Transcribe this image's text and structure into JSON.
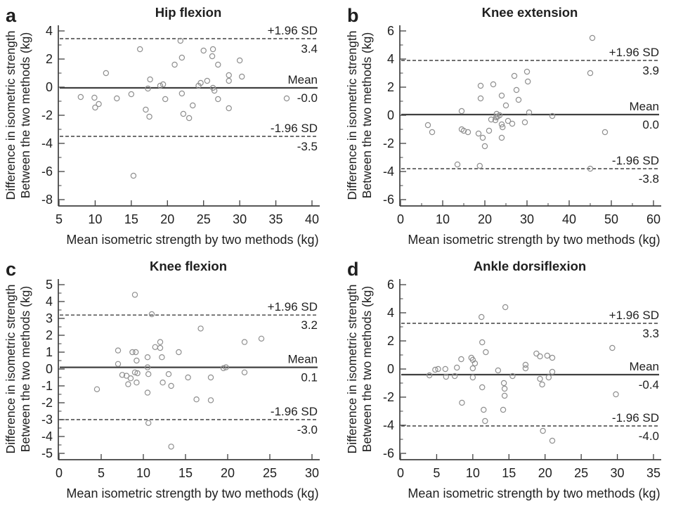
{
  "figure": {
    "background": "#ffffff",
    "text_color": "#1f1f1f",
    "axis_color": "#404040",
    "point_color": "#8f8f8f",
    "xlabel": "Mean isometric strength by two methods (kg)",
    "ylabel_line1": "Difference in isometric strength",
    "ylabel_line2": "Between the two methods (kg)"
  },
  "chart_data": [
    {
      "type": "scatter",
      "letter": "a",
      "title": "Hip flexion",
      "xlabel": "Mean isometric strength by two methods (kg)",
      "ylabel": [
        "Difference in isometric strength",
        "Between the two methods (kg)"
      ],
      "xlim": [
        5,
        40
      ],
      "ylim": [
        -8,
        4
      ],
      "xticks": [
        5,
        10,
        15,
        20,
        25,
        30,
        35,
        40
      ],
      "yticks": [
        4,
        2,
        0,
        -2,
        -4,
        -6,
        -8
      ],
      "x_minor_ticks": [],
      "y_minor_ticks": [
        3,
        1,
        -1,
        -3,
        -5,
        -7
      ],
      "grid": false,
      "reference_lines": [
        {
          "kind": "upper_loa",
          "label": "+1.96 SD",
          "value_label": "3.4",
          "y": 3.45,
          "style": "dashed"
        },
        {
          "kind": "mean",
          "label": "Mean",
          "value_label": "-0.0",
          "y": -0.05,
          "style": "solid"
        },
        {
          "kind": "lower_loa",
          "label": "-1.96 SD",
          "value_label": "-3.5",
          "y": -3.5,
          "style": "dashed"
        }
      ],
      "points": [
        [
          8,
          -0.7
        ],
        [
          9.9,
          -0.75
        ],
        [
          10,
          -1.45
        ],
        [
          10.5,
          -1.2
        ],
        [
          11.5,
          1.0
        ],
        [
          13,
          -0.8
        ],
        [
          15,
          -0.5
        ],
        [
          15.3,
          -6.3
        ],
        [
          16.2,
          2.7
        ],
        [
          17,
          -1.6
        ],
        [
          17.3,
          -0.1
        ],
        [
          17.6,
          0.55
        ],
        [
          17.5,
          -2.1
        ],
        [
          19,
          0.1
        ],
        [
          19.4,
          0.2
        ],
        [
          19.7,
          -0.85
        ],
        [
          21,
          1.6
        ],
        [
          21.8,
          3.3
        ],
        [
          22,
          2.1
        ],
        [
          22,
          -0.45
        ],
        [
          22.2,
          -1.9
        ],
        [
          23,
          -2.2
        ],
        [
          23.5,
          -1.3
        ],
        [
          24.3,
          0.1
        ],
        [
          24.6,
          0.3
        ],
        [
          25,
          2.6
        ],
        [
          25.5,
          0.45
        ],
        [
          26.2,
          2.2
        ],
        [
          26.3,
          2.7
        ],
        [
          26.3,
          -0.05
        ],
        [
          26.5,
          -0.25
        ],
        [
          27,
          1.6
        ],
        [
          27,
          -0.85
        ],
        [
          28.5,
          0.85
        ],
        [
          28.5,
          0.45
        ],
        [
          28.5,
          -1.5
        ],
        [
          30,
          1.9
        ],
        [
          30.3,
          0.75
        ],
        [
          36.5,
          -0.8
        ]
      ]
    },
    {
      "type": "scatter",
      "letter": "b",
      "title": "Knee extension",
      "xlabel": "Mean isometric strength by two methods (kg)",
      "ylabel": [
        "Difference in isometric strength",
        "Between the two methods (kg)"
      ],
      "xlim": [
        0,
        60
      ],
      "ylim": [
        -6,
        6
      ],
      "xticks": [
        0,
        10,
        20,
        30,
        40,
        50,
        60
      ],
      "yticks": [
        6,
        4,
        2,
        0,
        -2,
        -4,
        -6
      ],
      "x_minor_ticks": [
        5,
        15,
        25,
        35,
        45,
        55
      ],
      "y_minor_ticks": [
        5,
        3,
        1,
        -1,
        -3,
        -5
      ],
      "grid": false,
      "reference_lines": [
        {
          "kind": "upper_loa",
          "label": "+1.96 SD",
          "value_label": "3.9",
          "y": 3.9,
          "style": "dashed"
        },
        {
          "kind": "mean",
          "label": "Mean",
          "value_label": "0.0",
          "y": 0.05,
          "style": "solid"
        },
        {
          "kind": "lower_loa",
          "label": "-1.96 SD",
          "value_label": "-3.8",
          "y": -3.8,
          "style": "dashed"
        }
      ],
      "points": [
        [
          6.5,
          -0.7
        ],
        [
          7.5,
          -1.2
        ],
        [
          13.5,
          -3.5
        ],
        [
          14.5,
          0.3
        ],
        [
          14.5,
          -1.0
        ],
        [
          15,
          -1.1
        ],
        [
          16,
          -1.2
        ],
        [
          18.5,
          -1.3
        ],
        [
          18.8,
          -3.6
        ],
        [
          19,
          2.1
        ],
        [
          19,
          1.2
        ],
        [
          19.5,
          -1.6
        ],
        [
          20,
          -2.2
        ],
        [
          21,
          -1.1
        ],
        [
          21.5,
          -0.3
        ],
        [
          22,
          2.2
        ],
        [
          22.5,
          -0.35
        ],
        [
          22.7,
          -0.15
        ],
        [
          22.8,
          0.1
        ],
        [
          23,
          -0.1
        ],
        [
          23.5,
          0.0
        ],
        [
          24,
          1.4
        ],
        [
          24,
          -0.65
        ],
        [
          24.2,
          -0.85
        ],
        [
          24,
          -1.6
        ],
        [
          25,
          0.7
        ],
        [
          25.5,
          -0.4
        ],
        [
          26.5,
          -0.6
        ],
        [
          27,
          2.8
        ],
        [
          27.5,
          1.8
        ],
        [
          28,
          1.1
        ],
        [
          29.5,
          -0.5
        ],
        [
          30,
          3.1
        ],
        [
          30.2,
          2.4
        ],
        [
          30.5,
          0.2
        ],
        [
          36,
          -0.05
        ],
        [
          45.5,
          5.5
        ],
        [
          45,
          3.0
        ],
        [
          45,
          -3.8
        ],
        [
          48.5,
          -1.2
        ]
      ]
    },
    {
      "type": "scatter",
      "letter": "c",
      "title": "Knee flexion",
      "xlabel": "Mean isometric strength by two methods (kg)",
      "ylabel": [
        "Difference in isometric strength",
        "Between the two methods (kg)"
      ],
      "xlim": [
        0,
        30
      ],
      "ylim": [
        -5,
        5
      ],
      "xticks": [
        0,
        5,
        10,
        15,
        20,
        25,
        30
      ],
      "yticks": [
        5,
        4,
        3,
        2,
        1,
        0,
        -1,
        -2,
        -3,
        -4,
        -5
      ],
      "x_minor_ticks": [],
      "y_minor_ticks": [
        4.5,
        3.5,
        2.5,
        1.5,
        0.5,
        -0.5,
        -1.5,
        -2.5,
        -3.5,
        -4.5
      ],
      "grid": false,
      "reference_lines": [
        {
          "kind": "upper_loa",
          "label": "+1.96 SD",
          "value_label": "3.2",
          "y": 3.2,
          "style": "dashed"
        },
        {
          "kind": "mean",
          "label": "Mean",
          "value_label": "0.1",
          "y": 0.1,
          "style": "solid"
        },
        {
          "kind": "lower_loa",
          "label": "-1.96 SD",
          "value_label": "-3.0",
          "y": -3.0,
          "style": "dashed"
        }
      ],
      "points": [
        [
          4.5,
          -1.2
        ],
        [
          7,
          1.1
        ],
        [
          7,
          0.3
        ],
        [
          7.5,
          -0.35
        ],
        [
          8,
          -0.4
        ],
        [
          8.2,
          -0.9
        ],
        [
          8.5,
          -0.55
        ],
        [
          8.7,
          1.0
        ],
        [
          9,
          4.4
        ],
        [
          9.1,
          1.0
        ],
        [
          9,
          -0.2
        ],
        [
          9.3,
          -0.25
        ],
        [
          9.2,
          0.5
        ],
        [
          9.2,
          -0.8
        ],
        [
          10.5,
          0.7
        ],
        [
          10.5,
          0.1
        ],
        [
          10.6,
          -0.3
        ],
        [
          10.5,
          -1.4
        ],
        [
          10.6,
          -3.2
        ],
        [
          11,
          3.25
        ],
        [
          11.4,
          1.3
        ],
        [
          12,
          1.6
        ],
        [
          12,
          1.25
        ],
        [
          12.2,
          0.7
        ],
        [
          12.3,
          -0.8
        ],
        [
          13,
          -0.3
        ],
        [
          13.3,
          -1.0
        ],
        [
          13.3,
          -4.6
        ],
        [
          14.2,
          1.0
        ],
        [
          15.3,
          -0.5
        ],
        [
          16.3,
          -1.8
        ],
        [
          16.8,
          2.4
        ],
        [
          18,
          -0.5
        ],
        [
          18,
          -1.85
        ],
        [
          19.5,
          0.05
        ],
        [
          19.8,
          0.1
        ],
        [
          22,
          1.6
        ],
        [
          22,
          -0.2
        ],
        [
          24,
          1.8
        ]
      ]
    },
    {
      "type": "scatter",
      "letter": "d",
      "title": "Ankle dorsiflexion",
      "xlabel": "Mean isometric strength by two methods (kg)",
      "ylabel": [
        "Difference in isometric strength",
        "Between the two methods (kg)"
      ],
      "xlim": [
        0,
        35
      ],
      "ylim": [
        -6,
        6
      ],
      "xticks": [
        0,
        5,
        10,
        15,
        20,
        25,
        30,
        35
      ],
      "yticks": [
        6,
        4,
        2,
        0,
        -2,
        -4,
        -6
      ],
      "x_minor_ticks": [],
      "y_minor_ticks": [
        5,
        3,
        1,
        -1,
        -3,
        -5
      ],
      "grid": false,
      "reference_lines": [
        {
          "kind": "upper_loa",
          "label": "+1.96 SD",
          "value_label": "3.3",
          "y": 3.25,
          "style": "dashed"
        },
        {
          "kind": "mean",
          "label": "Mean",
          "value_label": "-0.4",
          "y": -0.4,
          "style": "solid"
        },
        {
          "kind": "lower_loa",
          "label": "-1.96 SD",
          "value_label": "-4.0",
          "y": -4.05,
          "style": "dashed"
        }
      ],
      "points": [
        [
          4,
          -0.45
        ],
        [
          4.8,
          -0.05
        ],
        [
          5.2,
          0.0
        ],
        [
          6.2,
          0.0
        ],
        [
          6.3,
          -0.55
        ],
        [
          7.5,
          -0.5
        ],
        [
          7.8,
          0.1
        ],
        [
          8.4,
          0.7
        ],
        [
          8.5,
          -2.4
        ],
        [
          9.8,
          0.8
        ],
        [
          10,
          0.65
        ],
        [
          10,
          0.05
        ],
        [
          10,
          -0.6
        ],
        [
          10.3,
          0.4
        ],
        [
          11.2,
          3.7
        ],
        [
          11.3,
          1.9
        ],
        [
          11.3,
          -1.3
        ],
        [
          11.5,
          -2.9
        ],
        [
          11.7,
          -3.7
        ],
        [
          11.8,
          1.2
        ],
        [
          13.5,
          -0.1
        ],
        [
          14.5,
          4.4
        ],
        [
          14.3,
          -1.0
        ],
        [
          14.4,
          -1.4
        ],
        [
          14.4,
          -1.9
        ],
        [
          14.2,
          -2.9
        ],
        [
          15.5,
          -0.5
        ],
        [
          17.3,
          0.3
        ],
        [
          17.3,
          0.05
        ],
        [
          18.8,
          1.1
        ],
        [
          19.3,
          0.9
        ],
        [
          19.3,
          -0.7
        ],
        [
          19.6,
          -1.1
        ],
        [
          19.7,
          -4.4
        ],
        [
          20.3,
          0.95
        ],
        [
          20.5,
          -0.6
        ],
        [
          21,
          0.8
        ],
        [
          21,
          -0.2
        ],
        [
          21,
          -5.1
        ],
        [
          29.3,
          1.5
        ],
        [
          29.8,
          -1.8
        ]
      ]
    }
  ]
}
